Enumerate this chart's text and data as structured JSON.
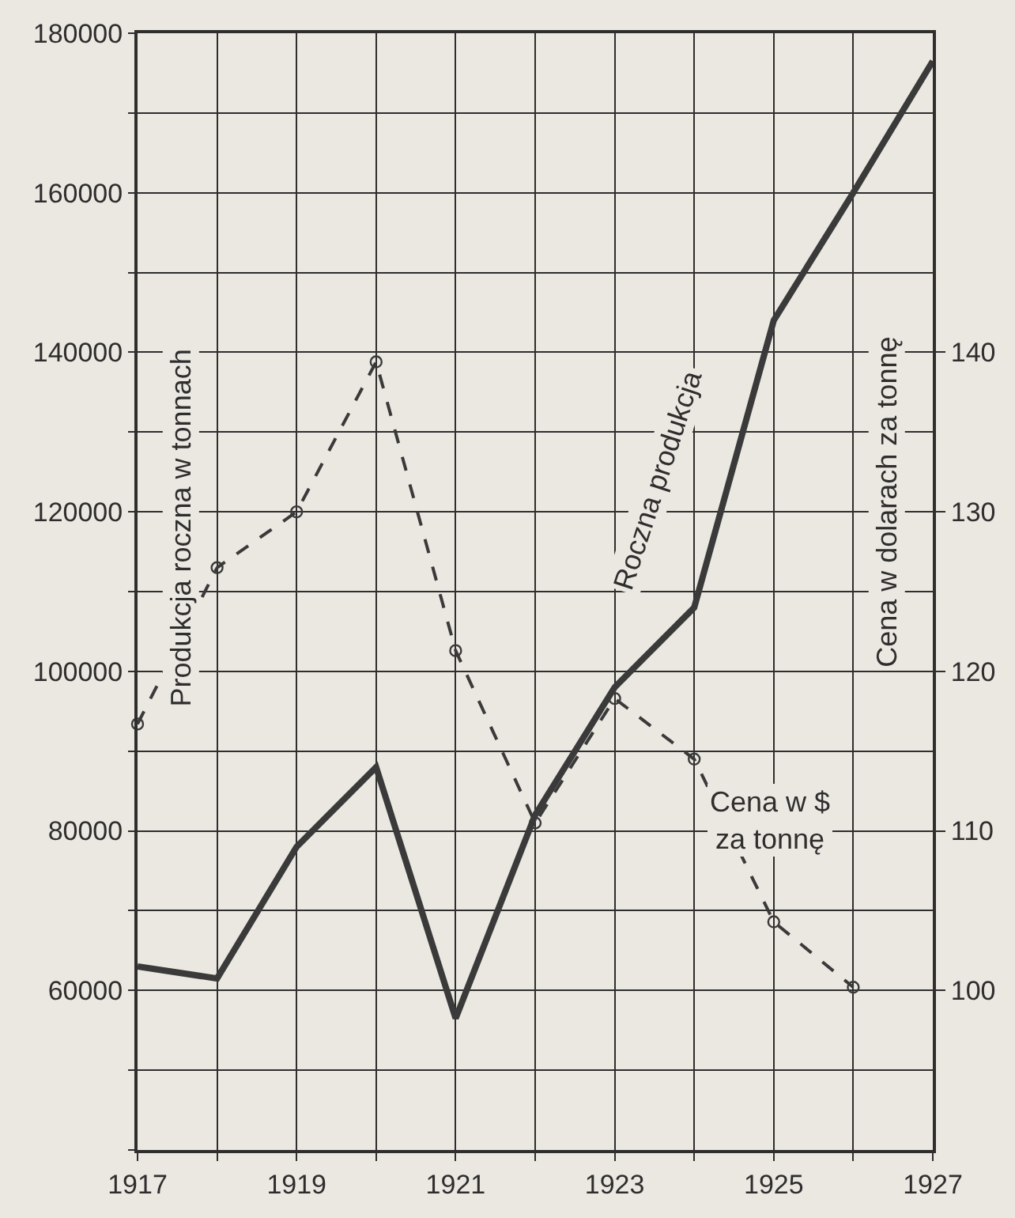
{
  "chart_data": {
    "type": "line",
    "xlabel": null,
    "ylabel": "Produkcja roczna w tonnach",
    "y2label": "Cena w dolarach za tonnę",
    "x": [
      1917,
      1918,
      1919,
      1920,
      1921,
      1922,
      1923,
      1924,
      1925,
      1926,
      1927
    ],
    "series": [
      {
        "color": "#3a3a3a",
        "marker": "none",
        "line_style": "solid",
        "values": [
          63000,
          61500,
          78000,
          88000,
          56500,
          82000,
          98000,
          108000,
          144000,
          160000,
          176500
        ]
      },
      {
        "color": "#3a3a3a",
        "marker": "circle",
        "line_style": "dashed",
        "axis": "y2",
        "values": [
          116.7,
          126.5,
          130,
          139.4,
          121.3,
          110.5,
          118.3,
          114.5,
          104.3,
          100.2,
          null
        ]
      }
    ],
    "xlim": [
      1917,
      1927
    ],
    "xticks": [
      1917,
      {
        "value": 1918,
        "label": null
      },
      1919,
      {
        "value": 1920,
        "label": null
      },
      1921,
      {
        "value": 1922,
        "label": null
      },
      1923,
      {
        "value": 1924,
        "label": null
      },
      1925,
      {
        "value": 1926,
        "label": null
      },
      1927
    ],
    "ylim": [
      40000,
      180000
    ],
    "yticks": [
      {
        "value": 40000,
        "label": null
      },
      {
        "value": 50000,
        "label": null
      },
      60000,
      {
        "value": 70000,
        "label": null
      },
      80000,
      {
        "value": 90000,
        "label": null
      },
      100000,
      {
        "value": 110000,
        "label": null
      },
      120000,
      {
        "value": 130000,
        "label": null
      },
      140000,
      {
        "value": 150000,
        "label": null
      },
      160000,
      {
        "value": 170000,
        "label": null
      },
      180000
    ],
    "y2lim": [
      90,
      160
    ],
    "y2ticks": [
      100,
      110,
      120,
      130,
      140
    ],
    "grid": true,
    "annotations": [
      "Roczna produkcja",
      "Cena w $\nza tonnę"
    ]
  }
}
